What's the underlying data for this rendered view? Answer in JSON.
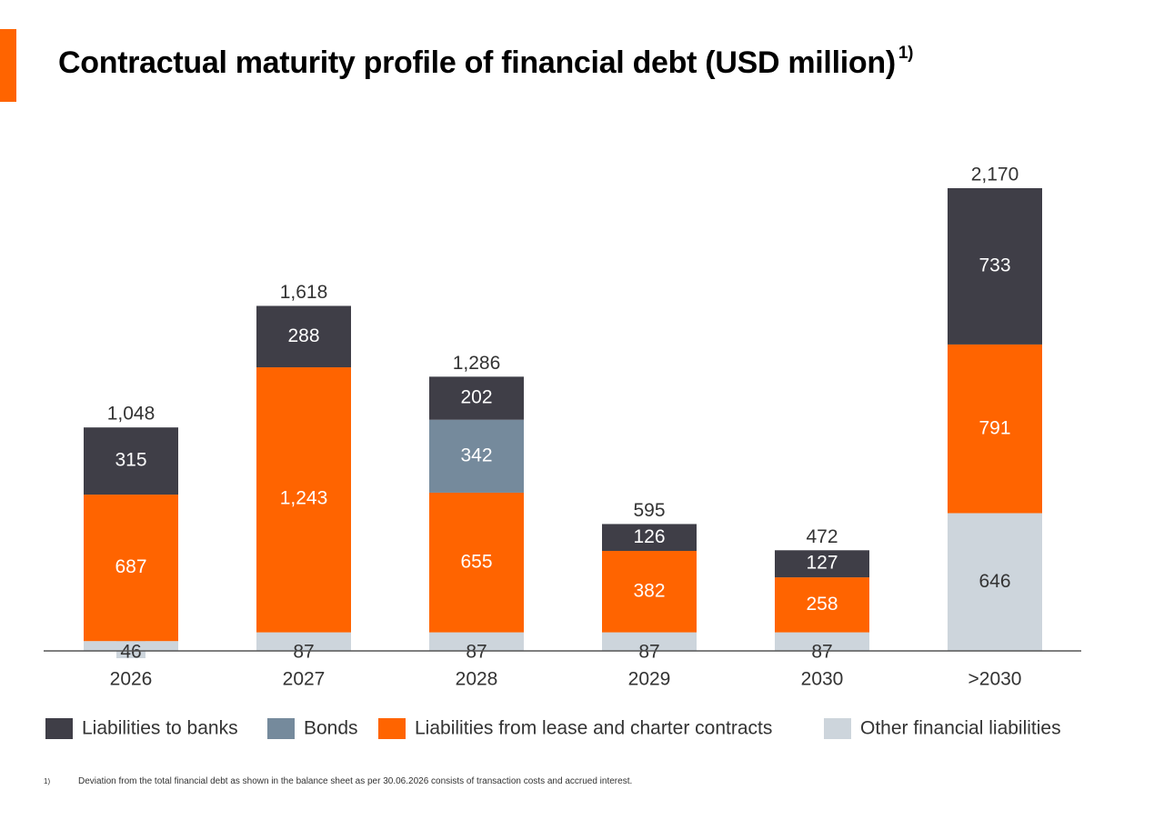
{
  "header": {
    "title": "Contractual maturity profile of financial debt (USD million)",
    "title_superscript": "1)"
  },
  "footnote": {
    "marker": "1)",
    "text": "Deviation from the total financial debt as shown in the balance sheet as per 30.06.2026 consists of transaction costs and accrued interest."
  },
  "colors": {
    "accent": "#ff6400"
  },
  "chart_data": {
    "type": "bar",
    "stacked": true,
    "categories": [
      "2026",
      "2027",
      "2028",
      "2029",
      "2030",
      ">2030"
    ],
    "totals": [
      "1,048",
      "1,618",
      "1,286",
      "595",
      "472",
      "2,170"
    ],
    "series": [
      {
        "name": "Other financial liabilities",
        "color": "#cdd5dc",
        "values": [
          46,
          87,
          87,
          87,
          87,
          646
        ],
        "labels": [
          "46",
          "87",
          "87",
          "87",
          "87",
          "646"
        ],
        "label_color": "#333333"
      },
      {
        "name": "Liabilities from lease and charter contracts",
        "color": "#ff6400",
        "values": [
          687,
          1243,
          655,
          382,
          258,
          791
        ],
        "labels": [
          "687",
          "1,243",
          "655",
          "382",
          "258",
          "791"
        ],
        "label_color": "#ffffff"
      },
      {
        "name": "Bonds",
        "color": "#758a9c",
        "values": [
          0,
          0,
          342,
          0,
          0,
          0
        ],
        "labels": [
          "",
          "",
          "342",
          "",
          "",
          ""
        ],
        "label_color": "#ffffff"
      },
      {
        "name": "Liabilities to banks",
        "color": "#3f3e47",
        "values": [
          315,
          288,
          202,
          126,
          127,
          733
        ],
        "labels": [
          "315",
          "288",
          "202",
          "126",
          "127",
          "733"
        ],
        "label_color": "#ffffff"
      }
    ],
    "legend_order": [
      "Liabilities to banks",
      "Bonds",
      "Liabilities from lease and charter contracts",
      "Other financial liabilities"
    ],
    "legend_position": "bottom",
    "ylim": [
      0,
      2170
    ],
    "grid": false,
    "xlabel": "",
    "ylabel": ""
  }
}
